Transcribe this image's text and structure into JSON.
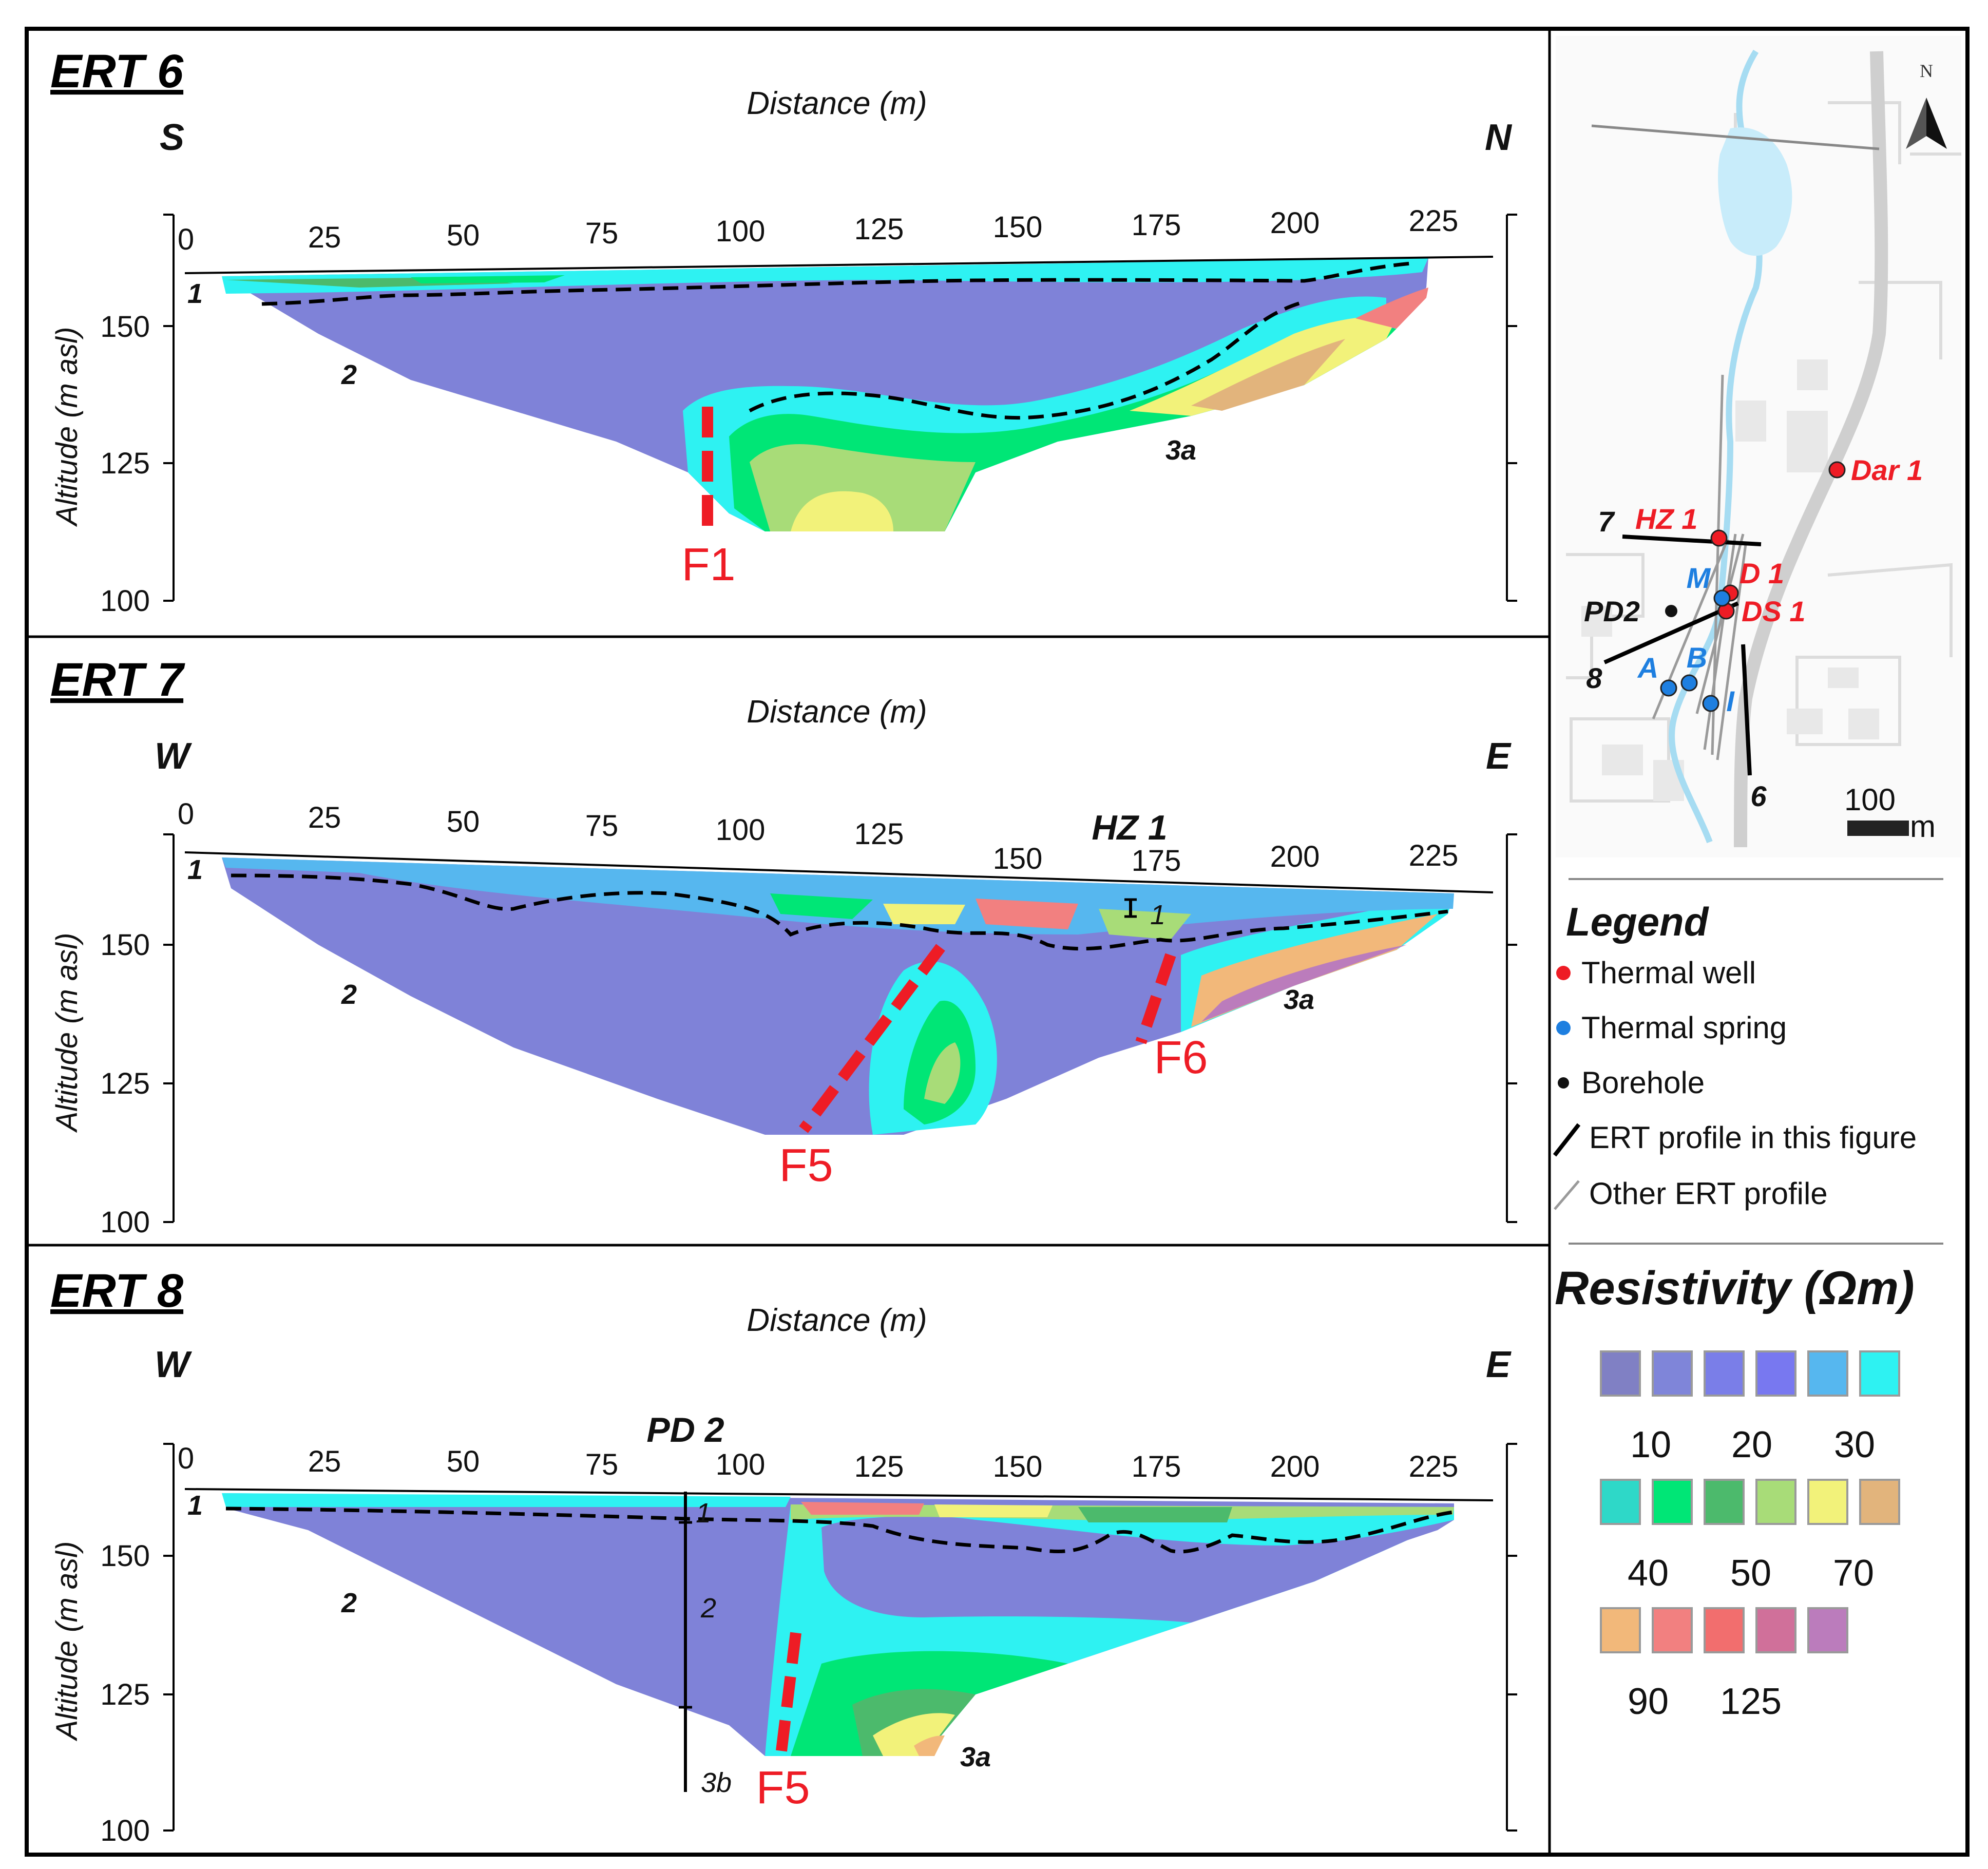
{
  "axis": {
    "distance_label": "Distance (m)",
    "altitude_label": "Altitude (m asl)",
    "x_ticks": [
      "0",
      "25",
      "50",
      "75",
      "100",
      "125",
      "150",
      "175",
      "200",
      "225"
    ],
    "y_ticks": [
      "150",
      "125",
      "100"
    ]
  },
  "panels": [
    {
      "title": "ERT 6",
      "left_dir": "S",
      "right_dir": "N",
      "units": [
        "1",
        "2",
        "3a"
      ],
      "faults": [
        "F1"
      ]
    },
    {
      "title": "ERT 7",
      "left_dir": "W",
      "right_dir": "E",
      "well": "HZ 1",
      "well_unit": "1",
      "units": [
        "1",
        "2",
        "3a"
      ],
      "faults": [
        "F5",
        "F6"
      ]
    },
    {
      "title": "ERT 8",
      "left_dir": "W",
      "right_dir": "E",
      "well": "PD 2",
      "borehole_units": [
        "1",
        "2",
        "3b"
      ],
      "units": [
        "1",
        "2",
        "3a"
      ],
      "faults": [
        "F5"
      ]
    }
  ],
  "map": {
    "north": "N",
    "thermal_wells": [
      "HZ 1",
      "D 1",
      "DS 1",
      "Dar 1"
    ],
    "thermal_springs": [
      "M",
      "A",
      "B",
      "I"
    ],
    "boreholes": [
      "PD2"
    ],
    "profiles": [
      "7",
      "8",
      "6"
    ],
    "scale_value": "100",
    "scale_unit": "m"
  },
  "legend": {
    "title": "Legend",
    "items": [
      {
        "label": "Thermal well",
        "color": "#ee1c25"
      },
      {
        "label": "Thermal spring",
        "color": "#1e7fe0"
      },
      {
        "label": "Borehole",
        "color": "#111111"
      },
      {
        "label": "ERT profile in this figure",
        "color": "#000000"
      },
      {
        "label": "Other ERT profile",
        "color": "#9a9a9a"
      }
    ]
  },
  "resistivity": {
    "title": "Resistivity (Ωm)",
    "colors": [
      "#8080c4",
      "#7f85d9",
      "#7a7ee8",
      "#7878f0",
      "#56b7ef",
      "#2ef2f2",
      "#2ed8c8",
      "#00e676",
      "#4cba6c",
      "#a8dc78",
      "#f2f27a",
      "#e2b47c",
      "#f2b87a",
      "#f28080",
      "#f26e6e",
      "#d0709a",
      "#bb7cbc"
    ],
    "labels_row1": [
      "10",
      "20",
      "30"
    ],
    "labels_row2": [
      "40",
      "50",
      "70"
    ],
    "labels_row3": [
      "90",
      "125"
    ]
  },
  "colors": {
    "fault": "#ee1c25",
    "well_marker": "#ee1c25",
    "spring_marker": "#1e7fe0"
  }
}
